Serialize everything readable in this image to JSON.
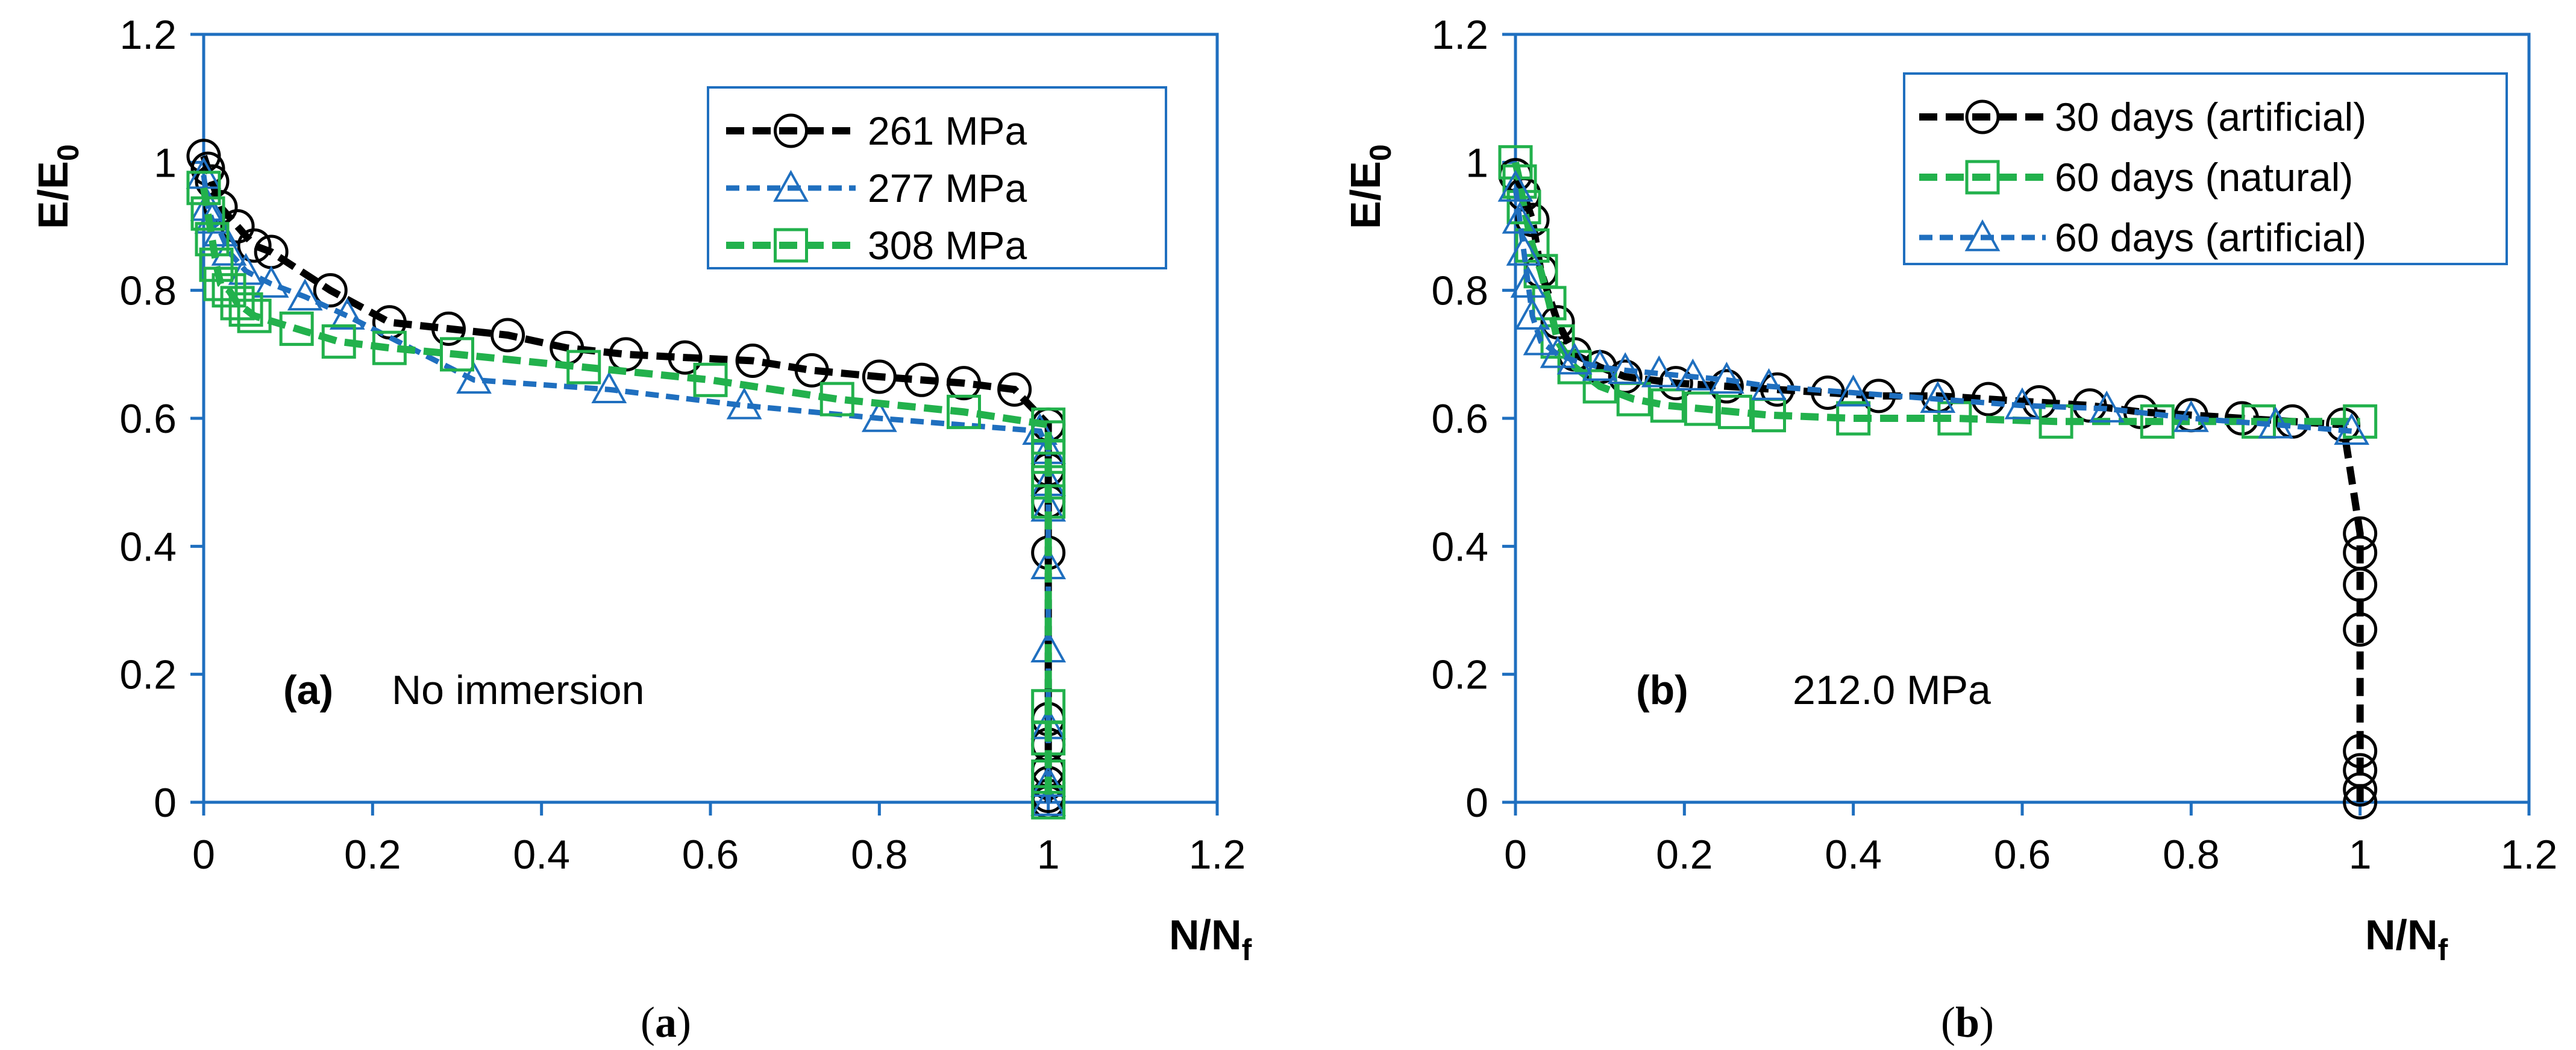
{
  "colors": {
    "axis": "#1f6fbf",
    "black": "#000000",
    "blue": "#1f6fbf",
    "green": "#22b14c"
  },
  "chart_data": [
    {
      "type": "line",
      "panel": "a",
      "xlabel_main": "N/N",
      "xlabel_sub": "f",
      "ylabel_main": "E/E",
      "ylabel_sub": "0",
      "xlim": [
        0,
        1.2
      ],
      "ylim": [
        0,
        1.2
      ],
      "xticks": [
        "0",
        "0.2",
        "0.4",
        "0.6",
        "0.8",
        "1",
        "1.2"
      ],
      "yticks": [
        "0",
        "0.2",
        "0.4",
        "0.6",
        "0.8",
        "1",
        "1.2"
      ],
      "annotation_label": "(a)",
      "annotation_text": "No immersion",
      "caption_open": "(",
      "caption_letter": "a",
      "caption_close": ")",
      "legend_position": "top-right",
      "series": [
        {
          "name": "261 MPa",
          "color": "#000000",
          "marker": "circle",
          "dash": "thick",
          "x": [
            0,
            0.005,
            0.01,
            0.02,
            0.04,
            0.06,
            0.08,
            0.15,
            0.22,
            0.29,
            0.36,
            0.43,
            0.5,
            0.57,
            0.65,
            0.72,
            0.8,
            0.85,
            0.9,
            0.96,
            1.0,
            1.0,
            1.0,
            1.0,
            1.0,
            1.0,
            1.0,
            1.0,
            1.0,
            1.0
          ],
          "y": [
            1.01,
            0.99,
            0.97,
            0.93,
            0.9,
            0.87,
            0.86,
            0.8,
            0.75,
            0.74,
            0.73,
            0.71,
            0.7,
            0.695,
            0.69,
            0.675,
            0.665,
            0.66,
            0.655,
            0.645,
            0.59,
            0.52,
            0.47,
            0.39,
            0.13,
            0.09,
            0.05,
            0.03,
            0.01,
            0.0
          ]
        },
        {
          "name": "277 MPa",
          "color": "#1f6fbf",
          "marker": "triangle",
          "dash": "thin",
          "x": [
            0,
            0.005,
            0.01,
            0.02,
            0.03,
            0.05,
            0.08,
            0.12,
            0.17,
            0.32,
            0.48,
            0.64,
            0.8,
            0.99,
            1.0,
            1.0,
            1.0,
            1.0,
            1.0,
            1.0,
            1.0,
            1.0
          ],
          "y": [
            0.98,
            0.93,
            0.91,
            0.89,
            0.86,
            0.83,
            0.81,
            0.79,
            0.76,
            0.66,
            0.645,
            0.62,
            0.6,
            0.58,
            0.55,
            0.5,
            0.46,
            0.37,
            0.24,
            0.12,
            0.03,
            0.0
          ]
        },
        {
          "name": "308 MPa",
          "color": "#22b14c",
          "marker": "square",
          "dash": "thick",
          "x": [
            0,
            0.005,
            0.01,
            0.015,
            0.02,
            0.03,
            0.04,
            0.05,
            0.06,
            0.11,
            0.16,
            0.22,
            0.3,
            0.45,
            0.6,
            0.75,
            0.9,
            1.0,
            1.0,
            1.0,
            1.0,
            1.0,
            1.0,
            1.0,
            1.0,
            1.0
          ],
          "y": [
            0.96,
            0.92,
            0.88,
            0.84,
            0.81,
            0.8,
            0.78,
            0.77,
            0.76,
            0.74,
            0.72,
            0.71,
            0.7,
            0.68,
            0.66,
            0.63,
            0.61,
            0.59,
            0.57,
            0.54,
            0.5,
            0.47,
            0.15,
            0.1,
            0.04,
            0.0
          ]
        }
      ]
    },
    {
      "type": "line",
      "panel": "b",
      "xlabel_main": "N/N",
      "xlabel_sub": "f",
      "ylabel_main": "E/E",
      "ylabel_sub": "0",
      "xlim": [
        0,
        1.2
      ],
      "ylim": [
        0,
        1.2
      ],
      "xticks": [
        "0",
        "0.2",
        "0.4",
        "0.6",
        "0.8",
        "1",
        "1.2"
      ],
      "yticks": [
        "0",
        "0.2",
        "0.4",
        "0.6",
        "0.8",
        "1",
        "1.2"
      ],
      "annotation_label": "(b)",
      "annotation_text": "212.0 MPa",
      "caption_open": "(",
      "caption_letter": "b",
      "caption_close": ")",
      "legend_position": "top-right",
      "series": [
        {
          "name": "30 days (artificial)",
          "color": "#000000",
          "marker": "circle",
          "dash": "thick",
          "x": [
            0,
            0.01,
            0.02,
            0.03,
            0.05,
            0.07,
            0.1,
            0.13,
            0.19,
            0.25,
            0.31,
            0.37,
            0.43,
            0.5,
            0.56,
            0.62,
            0.68,
            0.74,
            0.8,
            0.86,
            0.92,
            0.98,
            1.0,
            1.0,
            1.0,
            1.0,
            1.0,
            1.0,
            1.0,
            1.0
          ],
          "y": [
            0.98,
            0.95,
            0.91,
            0.83,
            0.75,
            0.7,
            0.68,
            0.665,
            0.655,
            0.65,
            0.645,
            0.64,
            0.635,
            0.635,
            0.63,
            0.625,
            0.62,
            0.61,
            0.605,
            0.6,
            0.595,
            0.59,
            0.42,
            0.39,
            0.34,
            0.27,
            0.08,
            0.05,
            0.02,
            0.0
          ]
        },
        {
          "name": "60 days (natural)",
          "color": "#22b14c",
          "marker": "square",
          "dash": "thick",
          "x": [
            0,
            0.005,
            0.01,
            0.02,
            0.03,
            0.04,
            0.05,
            0.07,
            0.1,
            0.14,
            0.18,
            0.22,
            0.26,
            0.3,
            0.4,
            0.52,
            0.64,
            0.76,
            0.88,
            1.0
          ],
          "y": [
            1.0,
            0.97,
            0.93,
            0.87,
            0.83,
            0.78,
            0.72,
            0.68,
            0.65,
            0.63,
            0.62,
            0.615,
            0.61,
            0.605,
            0.6,
            0.6,
            0.595,
            0.595,
            0.595,
            0.595
          ]
        },
        {
          "name": "60 days (artificial)",
          "color": "#1f6fbf",
          "marker": "triangle",
          "dash": "thin",
          "x": [
            0,
            0.005,
            0.01,
            0.015,
            0.02,
            0.03,
            0.05,
            0.07,
            0.1,
            0.13,
            0.17,
            0.21,
            0.25,
            0.3,
            0.4,
            0.5,
            0.6,
            0.7,
            0.8,
            0.9,
            0.99
          ],
          "y": [
            0.96,
            0.91,
            0.86,
            0.81,
            0.76,
            0.72,
            0.7,
            0.69,
            0.68,
            0.675,
            0.67,
            0.665,
            0.66,
            0.65,
            0.64,
            0.63,
            0.62,
            0.615,
            0.6,
            0.59,
            0.58
          ]
        }
      ]
    }
  ]
}
